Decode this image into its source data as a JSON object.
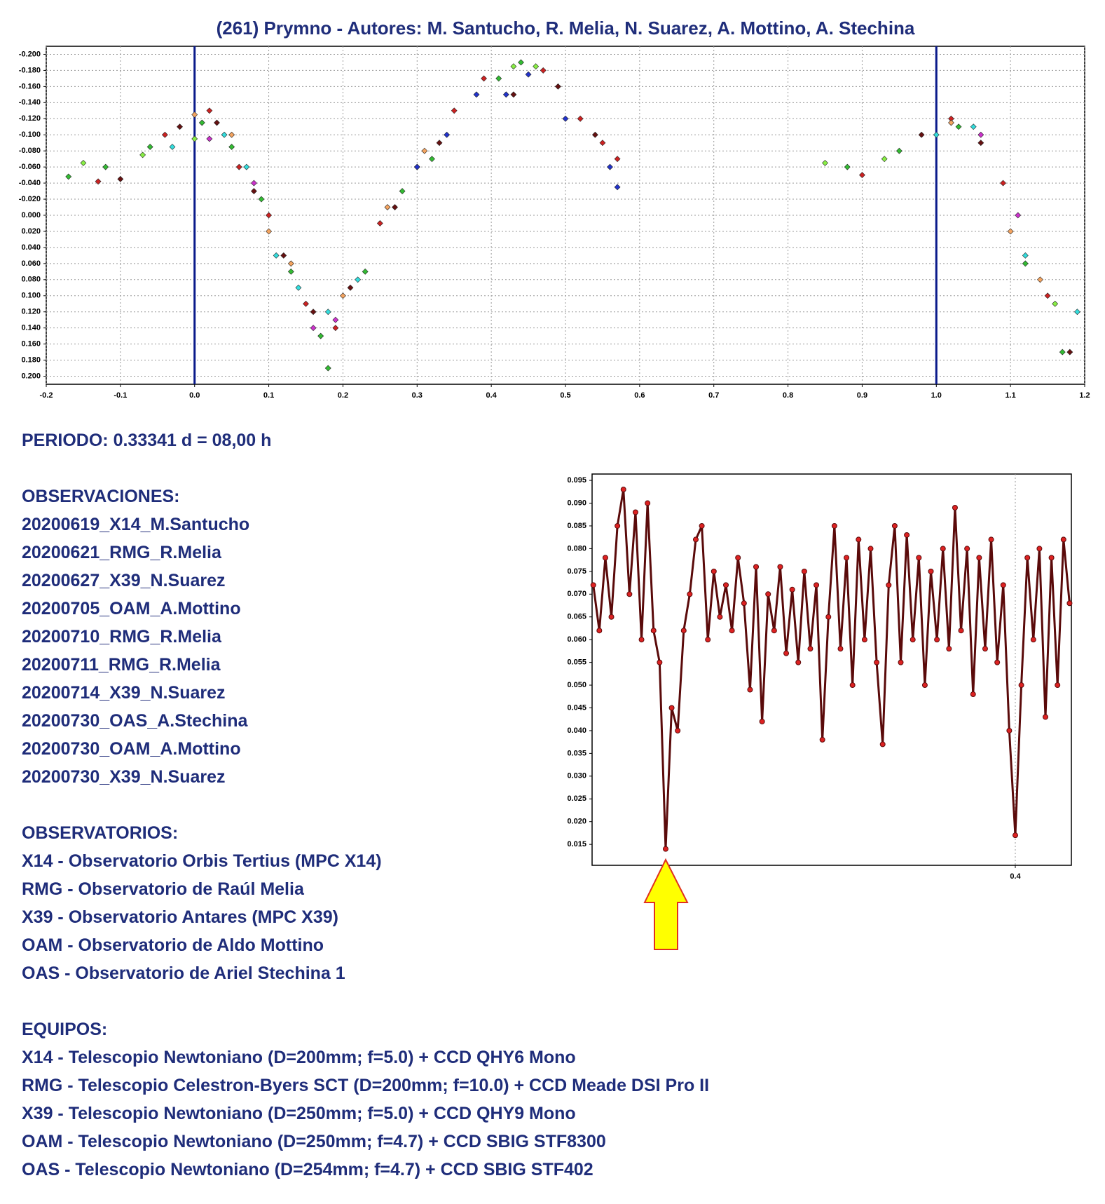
{
  "chart_data": [
    {
      "type": "scatter",
      "title": "(261) Prymno - Autores: M. Santucho, R. Melia, N. Suarez, A. Mottino, A. Stechina",
      "xlim": [
        -0.2,
        1.2
      ],
      "xticks": [
        -0.2,
        -0.1,
        {
          "value": 0,
          "label": "0.0"
        },
        0.1,
        0.2,
        0.3,
        0.4,
        0.5,
        0.6,
        0.7,
        0.8,
        0.9,
        {
          "value": 1,
          "label": "1.0"
        },
        1.1,
        1.2
      ],
      "ylim": [
        -0.21,
        0.21
      ],
      "y_inverted": true,
      "yticks": [
        {
          "value": -0.2,
          "label": "-0.200"
        },
        {
          "value": -0.18,
          "label": "-0.180"
        },
        {
          "value": -0.16,
          "label": "-0.160"
        },
        {
          "value": -0.14,
          "label": "-0.140"
        },
        {
          "value": -0.12,
          "label": "-0.120"
        },
        {
          "value": -0.1,
          "label": "-0.100"
        },
        {
          "value": -0.08,
          "label": "-0.080"
        },
        {
          "value": -0.06,
          "label": "-0.060"
        },
        {
          "value": -0.04,
          "label": "-0.040"
        },
        {
          "value": -0.02,
          "label": "-0.020"
        },
        {
          "value": 0,
          "label": "0.000"
        },
        {
          "value": 0.02,
          "label": "0.020"
        },
        {
          "value": 0.04,
          "label": "0.040"
        },
        {
          "value": 0.06,
          "label": "0.060"
        },
        {
          "value": 0.08,
          "label": "0.080"
        },
        {
          "value": 0.1,
          "label": "0.100"
        },
        {
          "value": 0.12,
          "label": "0.120"
        },
        {
          "value": 0.14,
          "label": "0.140"
        },
        {
          "value": 0.16,
          "label": "0.160"
        },
        {
          "value": 0.18,
          "label": "0.180"
        },
        {
          "value": 0.2,
          "label": "0.200"
        }
      ],
      "grid": "both",
      "vlines": [
        0,
        1
      ],
      "vline_color": "#0a1a8a",
      "series": [
        {
          "color": "#33bb33",
          "x": [
            -0.17,
            -0.12,
            -0.06,
            0.01,
            0.05,
            0.09,
            0.13,
            0.17,
            0.18,
            0.23,
            0.28,
            0.32,
            0.41,
            0.44,
            0.88,
            0.95,
            1.03,
            1.12,
            1.17
          ],
          "values": [
            -0.048,
            -0.06,
            -0.085,
            -0.115,
            -0.085,
            -0.02,
            0.07,
            0.15,
            0.19,
            0.07,
            -0.03,
            -0.07,
            -0.17,
            -0.19,
            -0.06,
            -0.08,
            -0.11,
            0.06,
            0.17
          ]
        },
        {
          "color": "#cc2222",
          "x": [
            -0.13,
            -0.04,
            0.02,
            0.06,
            0.1,
            0.15,
            0.19,
            0.25,
            0.3,
            0.35,
            0.39,
            0.47,
            0.52,
            0.55,
            0.57,
            0.9,
            1.02,
            1.09,
            1.15
          ],
          "values": [
            -0.042,
            -0.1,
            -0.13,
            -0.06,
            0,
            0.11,
            0.14,
            0.01,
            -0.06,
            -0.13,
            -0.17,
            -0.18,
            -0.12,
            -0.09,
            -0.07,
            -0.05,
            -0.12,
            -0.04,
            0.1
          ]
        },
        {
          "color": "#661111",
          "x": [
            -0.1,
            -0.02,
            0.03,
            0.08,
            0.12,
            0.16,
            0.21,
            0.27,
            0.33,
            0.43,
            0.49,
            0.54,
            0.98,
            1.06,
            1.18
          ],
          "values": [
            -0.045,
            -0.11,
            -0.115,
            -0.03,
            0.05,
            0.12,
            0.09,
            -0.01,
            -0.09,
            -0.15,
            -0.16,
            -0.1,
            -0.1,
            -0.09,
            0.17
          ]
        },
        {
          "color": "#33dddd",
          "x": [
            -0.03,
            0.04,
            0.07,
            0.11,
            0.14,
            0.18,
            0.22,
            1.0,
            1.05,
            1.12,
            1.19
          ],
          "values": [
            -0.085,
            -0.1,
            -0.06,
            0.05,
            0.09,
            0.12,
            0.08,
            -0.1,
            -0.11,
            0.05,
            0.12
          ]
        },
        {
          "color": "#f4a460",
          "x": [
            0,
            0.05,
            0.1,
            0.13,
            0.2,
            0.26,
            0.31,
            1.02,
            1.1,
            1.14
          ],
          "values": [
            -0.125,
            -0.1,
            0.02,
            0.06,
            0.1,
            -0.01,
            -0.08,
            -0.115,
            0.02,
            0.08
          ]
        },
        {
          "color": "#2233cc",
          "x": [
            0.3,
            0.34,
            0.38,
            0.42,
            0.45,
            0.5,
            0.56,
            0.57
          ],
          "values": [
            -0.06,
            -0.1,
            -0.15,
            -0.15,
            -0.175,
            -0.12,
            -0.06,
            -0.035
          ]
        },
        {
          "color": "#cc33cc",
          "x": [
            0.02,
            0.08,
            0.16,
            0.19,
            1.06,
            1.11
          ],
          "values": [
            -0.095,
            -0.04,
            0.14,
            0.13,
            -0.1,
            0
          ]
        },
        {
          "color": "#88ee44",
          "x": [
            -0.15,
            -0.07,
            0,
            0.43,
            0.46,
            0.85,
            0.93,
            1.16
          ],
          "values": [
            -0.065,
            -0.075,
            -0.095,
            -0.185,
            -0.185,
            -0.065,
            -0.07,
            0.11
          ]
        }
      ]
    },
    {
      "type": "line",
      "xlim": [
        0.3298,
        0.4093
      ],
      "xticks": [
        0.4
      ],
      "ylim": [
        0.0104,
        0.0964
      ],
      "yticks": [
        0.015,
        {
          "value": 0.02,
          "label": "0.020"
        },
        0.025,
        {
          "value": 0.03,
          "label": "0.030"
        },
        0.035,
        {
          "value": 0.04,
          "label": "0.040"
        },
        0.045,
        {
          "value": 0.05,
          "label": "0.050"
        },
        0.055,
        {
          "value": 0.06,
          "label": "0.060"
        },
        0.065,
        {
          "value": 0.07,
          "label": "0.070"
        },
        0.075,
        {
          "value": 0.08,
          "label": "0.080"
        },
        0.085,
        {
          "value": 0.09,
          "label": "0.090"
        },
        0.095
      ],
      "grid": "x",
      "color": "#5a0a0a",
      "marker_color": "#dd2222",
      "x": [
        0.33,
        0.331,
        0.332,
        0.333,
        0.334,
        0.335,
        0.336,
        0.337,
        0.338,
        0.339,
        0.34,
        0.341,
        0.342,
        0.343,
        0.344,
        0.345,
        0.346,
        0.347,
        0.348,
        0.349,
        0.35,
        0.351,
        0.352,
        0.353,
        0.354,
        0.355,
        0.356,
        0.357,
        0.358,
        0.359,
        0.36,
        0.361,
        0.362,
        0.363,
        0.364,
        0.365,
        0.366,
        0.367,
        0.368,
        0.369,
        0.37,
        0.371,
        0.372,
        0.373,
        0.374,
        0.375,
        0.376,
        0.377,
        0.378,
        0.379,
        0.38,
        0.381,
        0.382,
        0.383,
        0.384,
        0.385,
        0.386,
        0.387,
        0.388,
        0.389,
        0.39,
        0.391,
        0.392,
        0.393,
        0.394,
        0.395,
        0.396,
        0.397,
        0.398,
        0.399,
        0.4,
        0.401,
        0.402,
        0.403,
        0.404,
        0.405,
        0.406,
        0.407,
        0.408,
        0.409
      ],
      "values": [
        0.072,
        0.062,
        0.078,
        0.065,
        0.085,
        0.093,
        0.07,
        0.088,
        0.06,
        0.09,
        0.062,
        0.055,
        0.014,
        0.045,
        0.04,
        0.062,
        0.07,
        0.082,
        0.085,
        0.06,
        0.075,
        0.065,
        0.072,
        0.062,
        0.078,
        0.068,
        0.049,
        0.076,
        0.042,
        0.07,
        0.062,
        0.076,
        0.057,
        0.071,
        0.055,
        0.075,
        0.058,
        0.072,
        0.038,
        0.065,
        0.085,
        0.058,
        0.078,
        0.05,
        0.082,
        0.06,
        0.08,
        0.055,
        0.037,
        0.072,
        0.085,
        0.055,
        0.083,
        0.06,
        0.078,
        0.05,
        0.075,
        0.06,
        0.08,
        0.058,
        0.089,
        0.062,
        0.08,
        0.048,
        0.078,
        0.058,
        0.082,
        0.055,
        0.072,
        0.04,
        0.017,
        0.05,
        0.078,
        0.06,
        0.08,
        0.043,
        0.078,
        0.05,
        0.082,
        0.068
      ]
    }
  ],
  "notes": {
    "periodo": "PERIODO: 0.33341 d = 08,00 h",
    "observaciones": {
      "heading": "OBSERVACIONES:",
      "items": [
        "20200619_X14_M.Santucho",
        "20200621_RMG_R.Melia",
        "20200627_X39_N.Suarez",
        "20200705_OAM_A.Mottino",
        "20200710_RMG_R.Melia",
        "20200711_RMG_R.Melia",
        "20200714_X39_N.Suarez",
        "20200730_OAS_A.Stechina",
        "20200730_OAM_A.Mottino",
        "20200730_X39_N.Suarez"
      ]
    },
    "observatorios": {
      "heading": "OBSERVATORIOS:",
      "items": [
        "X14 - Observatorio Orbis Tertius (MPC X14)",
        "RMG - Observatorio de Raúl Melia",
        "X39 - Observatorio Antares (MPC X39)",
        "OAM - Observatorio de Aldo Mottino",
        "OAS - Observatorio de Ariel Stechina 1"
      ]
    },
    "equipos": {
      "heading": "EQUIPOS:",
      "items": [
        "X14 - Telescopio Newtoniano (D=200mm; f=5.0) + CCD QHY6 Mono",
        "RMG - Telescopio Celestron-Byers SCT (D=200mm; f=10.0) + CCD Meade DSI Pro II",
        "X39 - Telescopio Newtoniano (D=250mm; f=5.0) + CCD QHY9 Mono",
        "OAM - Telescopio Newtoniano (D=250mm; f=4.7) + CCD SBIG STF8300",
        "OAS - Telescopio Newtoniano (D=254mm; f=4.7) + CCD SBIG STF402"
      ]
    }
  }
}
